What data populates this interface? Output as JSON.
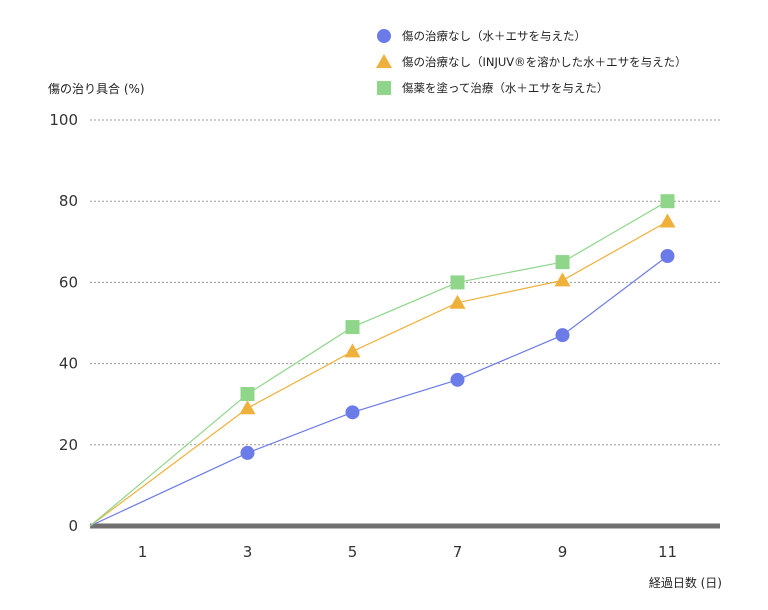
{
  "chart_data": {
    "type": "line",
    "ylabel": "傷の治り具合 (%)",
    "xlabel": "経過日数 (日)",
    "categories": [
      "1",
      "3",
      "5",
      "7",
      "9",
      "11"
    ],
    "ylim": [
      0,
      100
    ],
    "yticks": [
      0,
      20,
      40,
      60,
      80,
      100
    ],
    "grid": true,
    "legend_position": "top-right",
    "series": [
      {
        "name": "傷の治療なし（水＋エサを与えた）",
        "marker": "circle",
        "color": "#6b7be8",
        "points": [
          [
            0,
            0
          ],
          [
            3,
            18
          ],
          [
            5,
            28
          ],
          [
            7,
            36
          ],
          [
            9,
            47
          ],
          [
            11,
            66.5
          ]
        ]
      },
      {
        "name": "傷の治療なし（INJUV®を溶かした水＋エサを与えた）",
        "marker": "triangle",
        "color": "#f0b03c",
        "points": [
          [
            0,
            0
          ],
          [
            3,
            29
          ],
          [
            5,
            43
          ],
          [
            7,
            55
          ],
          [
            9,
            60.5
          ],
          [
            11,
            75
          ]
        ]
      },
      {
        "name": "傷薬を塗って治療（水＋エサを与えた）",
        "marker": "square",
        "color": "#8fd68a",
        "points": [
          [
            0,
            0
          ],
          [
            3,
            32.5
          ],
          [
            5,
            49
          ],
          [
            7,
            60
          ],
          [
            9,
            65
          ],
          [
            11,
            80
          ]
        ]
      }
    ]
  }
}
